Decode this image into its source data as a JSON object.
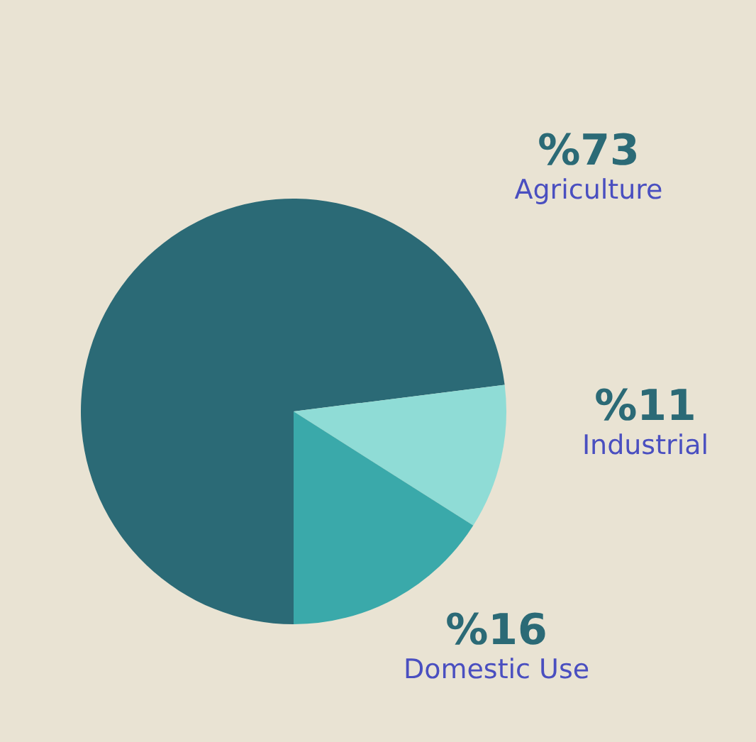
{
  "chart_data": {
    "type": "pie",
    "categories": [
      "Agriculture",
      "Industrial",
      "Domestic Use"
    ],
    "values": [
      73,
      11,
      16
    ],
    "colors": [
      "#2b6a76",
      "#8fdcd6",
      "#3aa9aa"
    ],
    "value_labels": [
      "%73",
      "%11",
      "%16"
    ],
    "legend": false
  }
}
